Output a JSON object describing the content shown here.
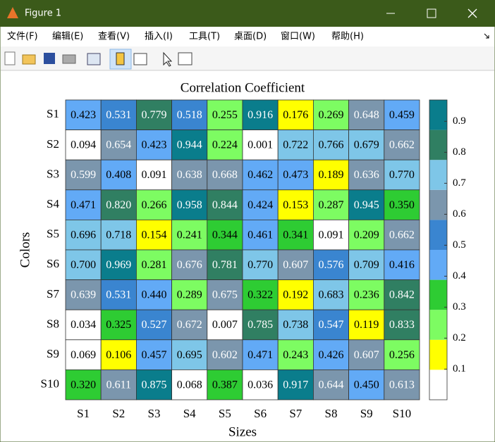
{
  "window": {
    "title": "Figure 1",
    "menu": [
      "文件(F)",
      "编辑(E)",
      "查看(V)",
      "插入(I)",
      "工具(T)",
      "桌面(D)",
      "窗口(W)",
      "帮助(H)"
    ]
  },
  "chart_data": {
    "type": "heatmap",
    "title": "Correlation Coefficient",
    "x_label": "Sizes",
    "y_label": "Colors",
    "x_categories": [
      "S1",
      "S2",
      "S3",
      "S4",
      "S5",
      "S6",
      "S7",
      "S8",
      "S9",
      "S10"
    ],
    "y_categories": [
      "S1",
      "S2",
      "S3",
      "S4",
      "S5",
      "S6",
      "S7",
      "S8",
      "S9",
      "S10"
    ],
    "values": [
      [
        0.423,
        0.531,
        0.779,
        0.518,
        0.255,
        0.916,
        0.176,
        0.269,
        0.648,
        0.459
      ],
      [
        0.094,
        0.654,
        0.423,
        0.944,
        0.224,
        0.001,
        0.722,
        0.766,
        0.679,
        0.662
      ],
      [
        0.599,
        0.408,
        0.091,
        0.638,
        0.668,
        0.462,
        0.473,
        0.189,
        0.636,
        0.77
      ],
      [
        0.471,
        0.82,
        0.266,
        0.958,
        0.844,
        0.424,
        0.153,
        0.287,
        0.945,
        0.35
      ],
      [
        0.696,
        0.718,
        0.154,
        0.241,
        0.344,
        0.461,
        0.341,
        0.091,
        0.209,
        0.662
      ],
      [
        0.7,
        0.969,
        0.281,
        0.676,
        0.781,
        0.77,
        0.607,
        0.576,
        0.709,
        0.416
      ],
      [
        0.639,
        0.531,
        0.44,
        0.289,
        0.675,
        0.322,
        0.192,
        0.683,
        0.236,
        0.842
      ],
      [
        0.034,
        0.325,
        0.527,
        0.672,
        0.007,
        0.785,
        0.738,
        0.547,
        0.119,
        0.833
      ],
      [
        0.069,
        0.106,
        0.457,
        0.695,
        0.602,
        0.471,
        0.243,
        0.426,
        0.607,
        0.256
      ],
      [
        0.32,
        0.611,
        0.875,
        0.068,
        0.387,
        0.036,
        0.917,
        0.644,
        0.45,
        0.613
      ]
    ],
    "value_labels": [
      [
        "0.423",
        "0.531",
        "0.779",
        "0.518",
        "0.255",
        "0.916",
        "0.176",
        "0.269",
        "0.648",
        "0.459"
      ],
      [
        "0.094",
        "0.654",
        "0.423",
        "0.944",
        "0.224",
        "0.001",
        "0.722",
        "0.766",
        "0.679",
        "0.662"
      ],
      [
        "0.599",
        "0.408",
        "0.091",
        "0.638",
        "0.668",
        "0.462",
        "0.473",
        "0.189",
        "0.636",
        "0.770"
      ],
      [
        "0.471",
        "0.820",
        "0.266",
        "0.958",
        "0.844",
        "0.424",
        "0.153",
        "0.287",
        "0.945",
        "0.350"
      ],
      [
        "0.696",
        "0.718",
        "0.154",
        "0.241",
        "0.344",
        "0.461",
        "0.341",
        "0.091",
        "0.209",
        "0.662"
      ],
      [
        "0.700",
        "0.969",
        "0.281",
        "0.676",
        "0.781",
        "0.770",
        "0.607",
        "0.576",
        "0.709",
        "0.416"
      ],
      [
        "0.639",
        "0.531",
        "0.440",
        "0.289",
        "0.675",
        "0.322",
        "0.192",
        "0.683",
        "0.236",
        "0.842"
      ],
      [
        "0.034",
        "0.325",
        "0.527",
        "0.672",
        "0.007",
        "0.785",
        "0.738",
        "0.547",
        "0.119",
        "0.833"
      ],
      [
        "0.069",
        "0.106",
        "0.457",
        "0.695",
        "0.602",
        "0.471",
        "0.243",
        "0.426",
        "0.607",
        "0.256"
      ],
      [
        "0.320",
        "0.611",
        "0.875",
        "0.068",
        "0.387",
        "0.036",
        "0.917",
        "0.644",
        "0.450",
        "0.613"
      ]
    ],
    "colormap": [
      "#ffffff",
      "#ffff00",
      "#7dfc62",
      "#2ecc33",
      "#62aaf6",
      "#3a85d0",
      "#7b96ad",
      "#7ec6e8",
      "#307f62",
      "#0a7d8c"
    ],
    "clim": [
      0.001,
      0.969
    ],
    "colorbar_ticks": [
      0.1,
      0.2,
      0.3,
      0.4,
      0.5,
      0.6,
      0.7,
      0.8,
      0.9
    ]
  }
}
